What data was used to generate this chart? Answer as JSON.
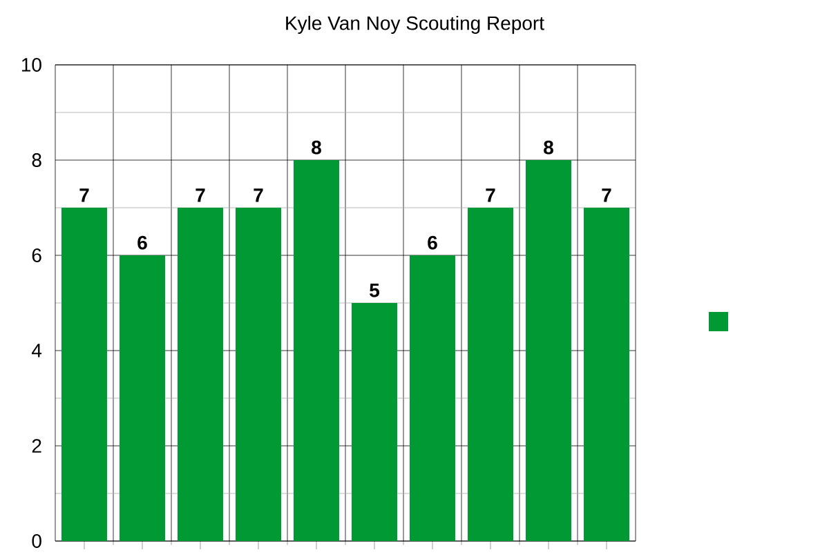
{
  "chart_data": {
    "type": "bar",
    "title": "Kyle Van Noy Scouting Report",
    "categories": [
      null,
      null,
      null,
      null,
      null,
      null,
      null,
      null,
      null,
      null
    ],
    "values": [
      7,
      6,
      7,
      7,
      8,
      5,
      6,
      7,
      8,
      7
    ],
    "color": "#009933",
    "ylim": [
      0,
      10
    ],
    "yticks": [
      0,
      2,
      4,
      6,
      8,
      10
    ],
    "grid": true,
    "data_labels": true
  }
}
